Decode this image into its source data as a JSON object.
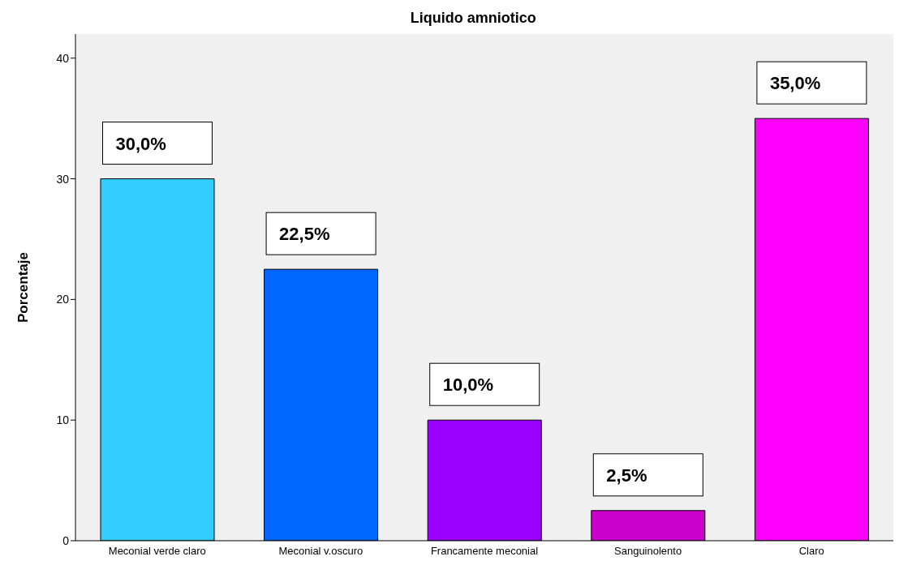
{
  "chart_data": {
    "type": "bar",
    "title": "Liquido amniotico",
    "ylabel": "Porcentaje",
    "categories": [
      "Meconial verde claro",
      "Meconial v.oscuro",
      "Francamente meconial",
      "Sanguinolento",
      "Claro"
    ],
    "values": [
      30,
      22.5,
      10,
      2.5,
      35
    ],
    "colors": [
      "#33ccff",
      "#0066ff",
      "#9900ff",
      "#cc00cc",
      "#ff00ff"
    ],
    "value_labels": [
      "30,0%",
      "22,5%",
      "10,0%",
      "2,5%",
      "35,0%"
    ],
    "ylim": [
      0,
      42
    ],
    "yticks": [
      0,
      10,
      20,
      30,
      40
    ],
    "grid": false,
    "legend": false
  }
}
